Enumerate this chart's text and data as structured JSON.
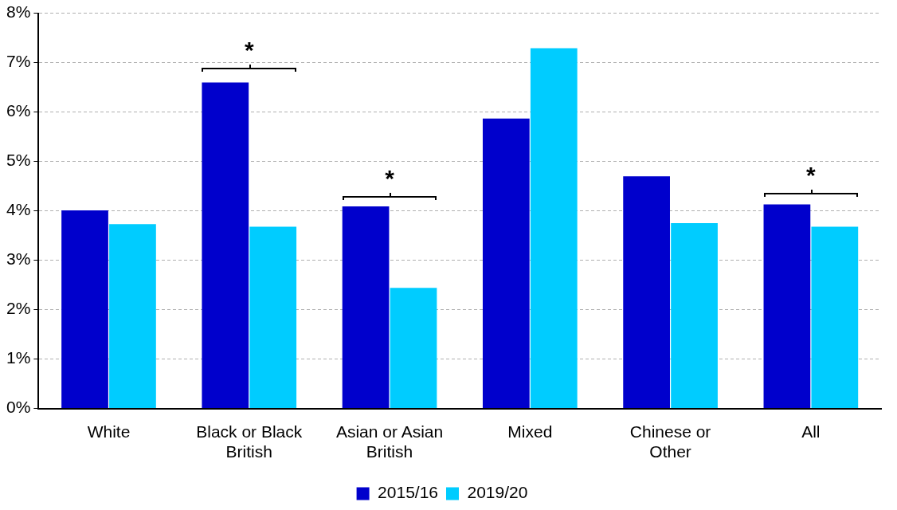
{
  "chart_data": {
    "type": "bar",
    "categories": [
      "White",
      "Black or Black British",
      "Asian or Asian British",
      "Mixed",
      "Chinese or Other",
      "All"
    ],
    "series": [
      {
        "name": "2015/16",
        "color": "#0000cc",
        "values": [
          4.01,
          6.6,
          4.09,
          5.87,
          4.7,
          4.13
        ]
      },
      {
        "name": "2019/20",
        "color": "#00ccff",
        "values": [
          3.73,
          3.68,
          2.44,
          7.29,
          3.75,
          3.68
        ]
      }
    ],
    "ylim": [
      0,
      8
    ],
    "yticks": [
      {
        "value": 0,
        "label": "0%"
      },
      {
        "value": 1,
        "label": "1%"
      },
      {
        "value": 2,
        "label": "2%"
      },
      {
        "value": 3,
        "label": "3%"
      },
      {
        "value": 4,
        "label": "4%"
      },
      {
        "value": 5,
        "label": "5%"
      },
      {
        "value": 6,
        "label": "6%"
      },
      {
        "value": 7,
        "label": "7%"
      },
      {
        "value": 8,
        "label": "8%"
      }
    ],
    "grid": "y",
    "legend": "bottom",
    "annotations": [
      {
        "text": "*",
        "x": "Black or Black British",
        "y": 6.9
      },
      {
        "text": "*",
        "x": "Asian or Asian British",
        "y": 4.3
      },
      {
        "text": "*",
        "x": "All",
        "y": 4.37
      }
    ]
  }
}
